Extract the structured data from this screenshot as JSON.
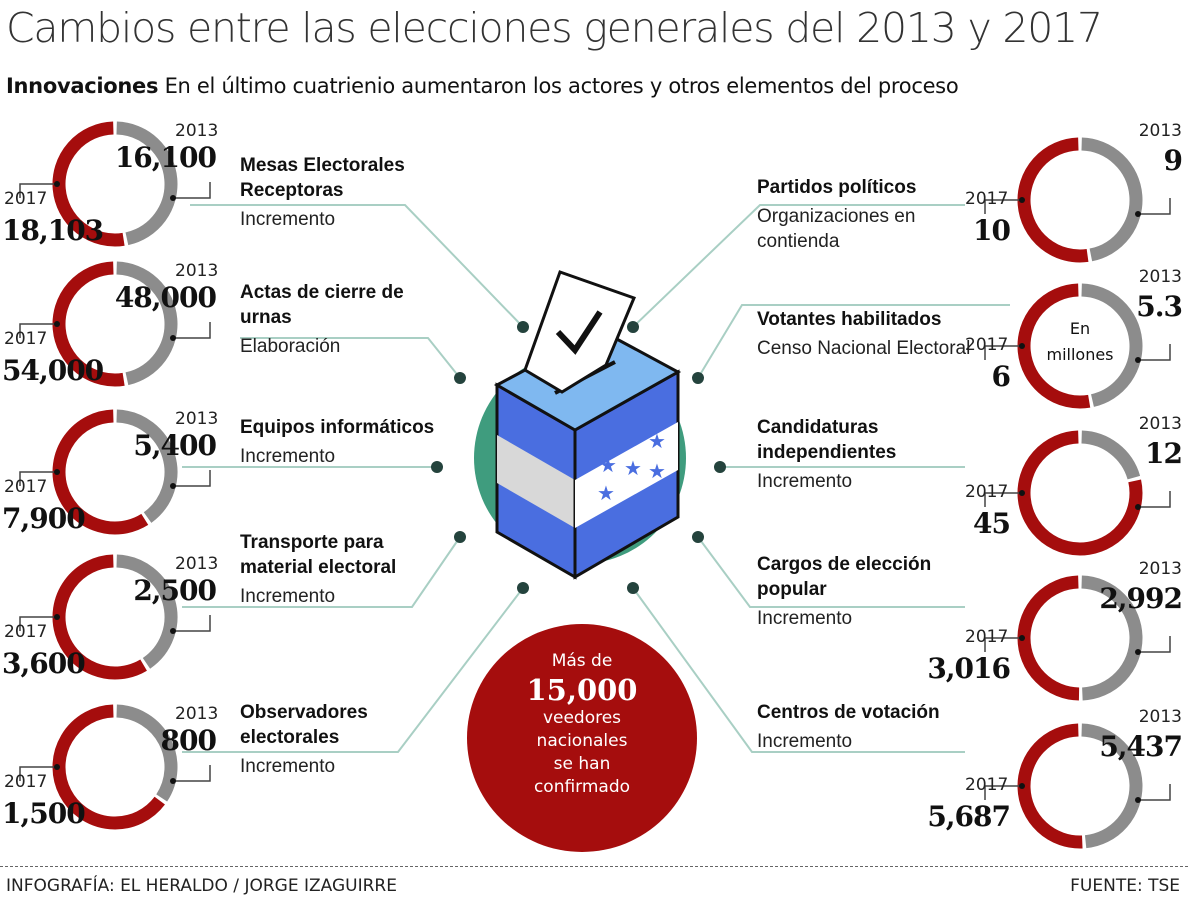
{
  "title": "Cambios entre las elecciones generales del 2013 y 2017",
  "subtitle": {
    "bold": "Innovaciones",
    "text": "En el último cuatrienio aumentaron los actores y otros elementos del proceso"
  },
  "colors": {
    "y2017": "#a50d0d",
    "y2013": "#8c8c8c",
    "line": "#a9cfc4",
    "dot": "#24433d",
    "box_blue": "#4a6ee0",
    "box_top": "#7fb8f0",
    "globe": "#3f9c7e"
  },
  "chart_data": {
    "type": "donut",
    "year_labels": [
      "2013",
      "2017"
    ],
    "left": [
      {
        "label": "Mesas Electorales Receptoras",
        "sublabel": "Incremento",
        "v2013": 16100,
        "v2017": 18103,
        "t2013": "16,100",
        "t2017": "18,103"
      },
      {
        "label": "Actas de cierre de urnas",
        "sublabel": "Elaboración",
        "v2013": 48000,
        "v2017": 54000,
        "t2013": "48,000",
        "t2017": "54,000"
      },
      {
        "label": "Equipos informáticos",
        "sublabel": "Incremento",
        "v2013": 5400,
        "v2017": 7900,
        "t2013": "5,400",
        "t2017": "7,900"
      },
      {
        "label": "Transporte para material electoral",
        "sublabel": "Incremento",
        "v2013": 2500,
        "v2017": 3600,
        "t2013": "2,500",
        "t2017": "3,600"
      },
      {
        "label": "Observadores electorales",
        "sublabel": "Incremento",
        "v2013": 800,
        "v2017": 1500,
        "t2013": "800",
        "t2017": "1,500"
      }
    ],
    "right": [
      {
        "label": "Partidos políticos",
        "sublabel": "Organizaciones en contienda",
        "v2013": 9,
        "v2017": 10,
        "t2013": "9",
        "t2017": "10"
      },
      {
        "label": "Votantes habilitados",
        "sublabel": "Censo Nacional Electoral",
        "v2013": 5.3,
        "v2017": 6,
        "t2013": "5.3",
        "t2017": "6",
        "note": "En millones"
      },
      {
        "label": "Candidaturas independientes",
        "sublabel": "Incremento",
        "v2013": 12,
        "v2017": 45,
        "t2013": "12",
        "t2017": "45"
      },
      {
        "label": "Cargos de elección popular",
        "sublabel": "Incremento",
        "v2013": 2992,
        "v2017": 3016,
        "t2013": "2,992",
        "t2017": "3,016"
      },
      {
        "label": "Centros de votación",
        "sublabel": "Incremento",
        "v2013": 5437,
        "v2017": 5687,
        "t2013": "5,437",
        "t2017": "5,687"
      }
    ]
  },
  "callout": {
    "line1": "Más de",
    "number": "15,000",
    "line2": "veedores",
    "line3": "nacionales",
    "line4": "se han",
    "line5": "confirmado"
  },
  "footer": {
    "credit": "INFOGRAFÍA: EL HERALDO / JORGE IZAGUIRRE",
    "source": "FUENTE: TSE"
  }
}
